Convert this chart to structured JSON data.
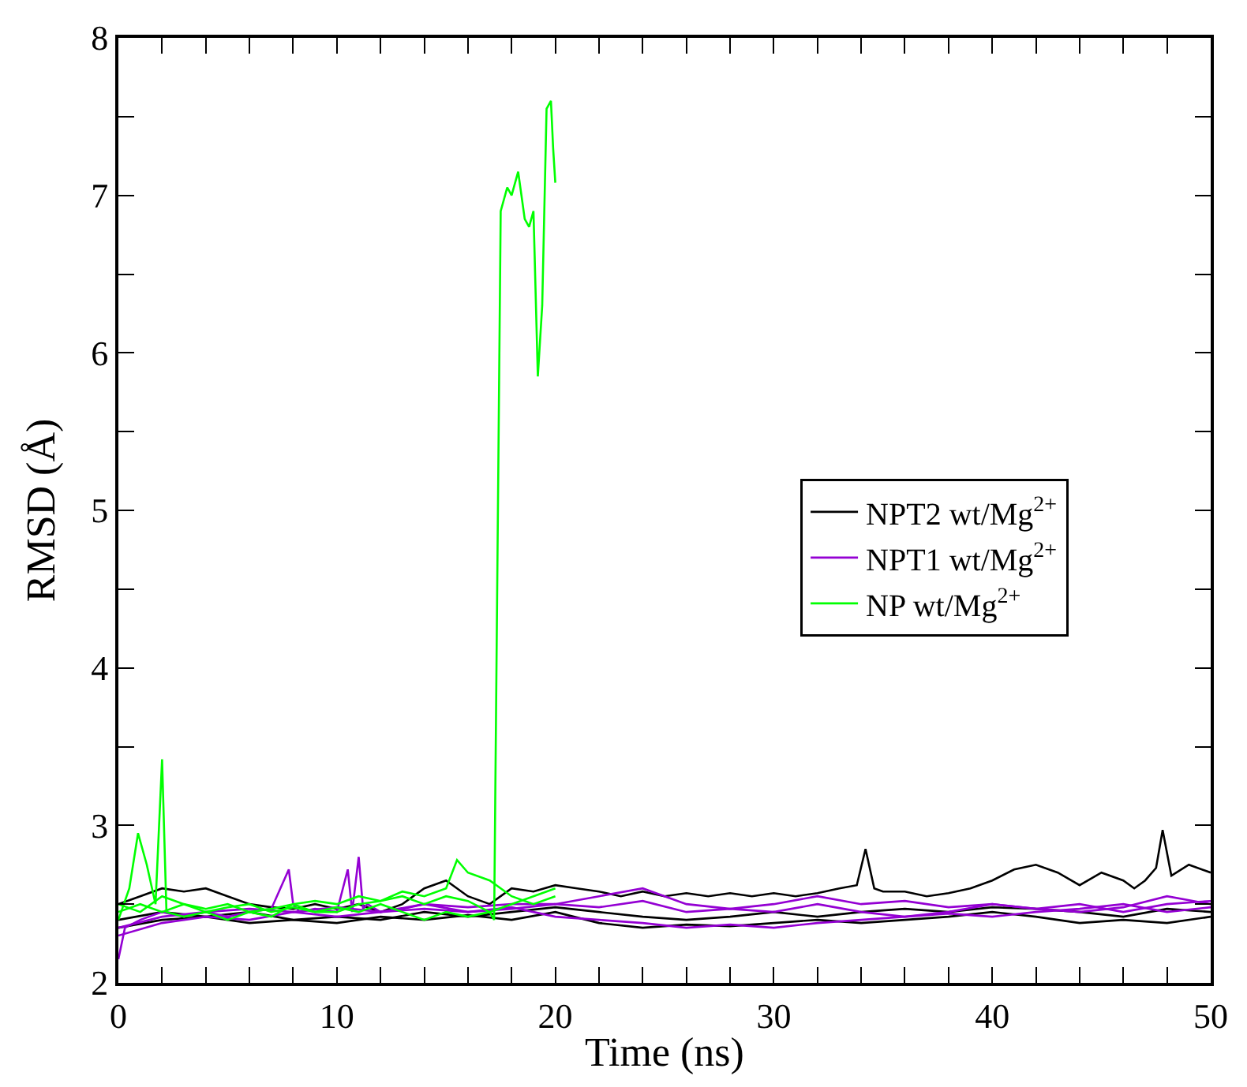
{
  "chart_data": {
    "type": "line",
    "xlabel": "Time (ns)",
    "ylabel": "RMSD (Å)",
    "xlim": [
      0,
      50
    ],
    "ylim": [
      2,
      8
    ],
    "xticks": [
      0,
      {
        "value": 2,
        "label": null
      },
      {
        "value": 4,
        "label": null
      },
      {
        "value": 6,
        "label": null
      },
      {
        "value": 8,
        "label": null
      },
      10,
      {
        "value": 12,
        "label": null
      },
      {
        "value": 14,
        "label": null
      },
      {
        "value": 16,
        "label": null
      },
      {
        "value": 18,
        "label": null
      },
      20,
      {
        "value": 22,
        "label": null
      },
      {
        "value": 24,
        "label": null
      },
      {
        "value": 26,
        "label": null
      },
      {
        "value": 28,
        "label": null
      },
      30,
      {
        "value": 32,
        "label": null
      },
      {
        "value": 34,
        "label": null
      },
      {
        "value": 36,
        "label": null
      },
      {
        "value": 38,
        "label": null
      },
      40,
      {
        "value": 42,
        "label": null
      },
      {
        "value": 44,
        "label": null
      },
      {
        "value": 46,
        "label": null
      },
      {
        "value": 48,
        "label": null
      },
      50
    ],
    "yticks": [
      2,
      {
        "value": 2.5,
        "label": null
      },
      3,
      {
        "value": 3.5,
        "label": null
      },
      4,
      {
        "value": 4.5,
        "label": null
      },
      5,
      {
        "value": 5.5,
        "label": null
      },
      6,
      {
        "value": 6.5,
        "label": null
      },
      7,
      {
        "value": 7.5,
        "label": null
      },
      8
    ],
    "legend": "right",
    "marker": "none",
    "line_style": "solid",
    "series": [
      {
        "name": "NPT2 wt/Mg$^{2+}$",
        "color": "#000000",
        "x": [
          0,
          1,
          2,
          3,
          4,
          5,
          6,
          7,
          8,
          9,
          10,
          11,
          12,
          13,
          14,
          15,
          16,
          17,
          18,
          19,
          20,
          21,
          22,
          23,
          24,
          25,
          26,
          27,
          28,
          29,
          30,
          31,
          32,
          33,
          33.8,
          34.2,
          34.6,
          35,
          36,
          37,
          38,
          39,
          40,
          41,
          42,
          43,
          44,
          45,
          46,
          46.5,
          47,
          47.5,
          47.8,
          48.2,
          49,
          50
        ],
        "values": [
          2.5,
          2.55,
          2.6,
          2.58,
          2.6,
          2.55,
          2.5,
          2.48,
          2.47,
          2.5,
          2.47,
          2.5,
          2.45,
          2.5,
          2.6,
          2.65,
          2.55,
          2.5,
          2.6,
          2.58,
          2.62,
          2.6,
          2.58,
          2.55,
          2.58,
          2.55,
          2.57,
          2.55,
          2.57,
          2.55,
          2.57,
          2.55,
          2.57,
          2.6,
          2.62,
          2.85,
          2.6,
          2.58,
          2.58,
          2.55,
          2.57,
          2.6,
          2.65,
          2.72,
          2.75,
          2.7,
          2.62,
          2.7,
          2.65,
          2.6,
          2.65,
          2.73,
          2.97,
          2.68,
          2.75,
          2.7
        ]
      },
      {
        "color": "#000000",
        "x": [
          0,
          2,
          4,
          6,
          8,
          10,
          12,
          14,
          16,
          18,
          20,
          22,
          24,
          26,
          28,
          30,
          32,
          34,
          36,
          38,
          40,
          42,
          44,
          46,
          48,
          50
        ],
        "values": [
          2.35,
          2.4,
          2.42,
          2.38,
          2.4,
          2.42,
          2.4,
          2.45,
          2.42,
          2.45,
          2.48,
          2.45,
          2.42,
          2.4,
          2.42,
          2.45,
          2.42,
          2.45,
          2.47,
          2.45,
          2.48,
          2.47,
          2.45,
          2.42,
          2.47,
          2.45
        ]
      },
      {
        "color": "#000000",
        "x": [
          0,
          2,
          4,
          6,
          8,
          10,
          12,
          14,
          16,
          18,
          20,
          22,
          24,
          26,
          28,
          30,
          32,
          34,
          36,
          38,
          40,
          42,
          44,
          46,
          48,
          50
        ],
        "values": [
          2.4,
          2.45,
          2.42,
          2.45,
          2.4,
          2.38,
          2.42,
          2.4,
          2.43,
          2.4,
          2.45,
          2.38,
          2.35,
          2.37,
          2.36,
          2.38,
          2.4,
          2.38,
          2.4,
          2.42,
          2.45,
          2.42,
          2.38,
          2.4,
          2.38,
          2.42
        ]
      },
      {
        "name": "NPT1 wt/Mg$^{2+}$",
        "color": "#9400d3",
        "x": [
          0,
          0.3,
          1,
          2,
          3,
          4,
          5,
          6,
          7,
          7.8,
          8,
          8.3,
          9,
          10,
          10.5,
          10.7,
          11,
          11.2,
          11.4,
          12,
          13,
          14,
          16,
          18,
          20,
          22,
          24,
          26,
          28,
          30,
          32,
          34,
          36,
          38,
          40,
          42,
          44,
          46,
          48,
          50
        ],
        "values": [
          2.15,
          2.35,
          2.4,
          2.45,
          2.42,
          2.45,
          2.42,
          2.45,
          2.47,
          2.72,
          2.5,
          2.45,
          2.47,
          2.45,
          2.72,
          2.45,
          2.8,
          2.47,
          2.5,
          2.45,
          2.47,
          2.5,
          2.45,
          2.47,
          2.5,
          2.55,
          2.6,
          2.5,
          2.47,
          2.5,
          2.55,
          2.5,
          2.52,
          2.48,
          2.5,
          2.47,
          2.5,
          2.45,
          2.5,
          2.52
        ]
      },
      {
        "color": "#9400d3",
        "x": [
          0,
          2,
          4,
          6,
          8,
          10,
          12,
          14,
          16,
          18,
          20,
          22,
          24,
          26,
          28,
          30,
          32,
          34,
          36,
          38,
          40,
          42,
          44,
          46,
          48,
          50
        ],
        "values": [
          2.3,
          2.38,
          2.42,
          2.4,
          2.45,
          2.42,
          2.45,
          2.47,
          2.45,
          2.48,
          2.42,
          2.4,
          2.38,
          2.35,
          2.37,
          2.35,
          2.38,
          2.4,
          2.42,
          2.44,
          2.42,
          2.45,
          2.47,
          2.5,
          2.45,
          2.48
        ]
      },
      {
        "color": "#9400d3",
        "x": [
          0,
          2,
          4,
          6,
          8,
          10,
          12,
          14,
          16,
          18,
          20,
          22,
          24,
          26,
          28,
          30,
          32,
          34,
          36,
          38,
          40,
          42,
          44,
          46,
          48,
          50
        ],
        "values": [
          2.35,
          2.42,
          2.45,
          2.47,
          2.45,
          2.48,
          2.45,
          2.5,
          2.48,
          2.5,
          2.5,
          2.48,
          2.52,
          2.45,
          2.47,
          2.45,
          2.5,
          2.45,
          2.42,
          2.45,
          2.5,
          2.47,
          2.45,
          2.48,
          2.55,
          2.5
        ]
      },
      {
        "name": "NP wt/Mg$^{2+}$",
        "color": "#00ff00",
        "x": [
          0,
          1,
          2,
          3,
          4,
          5,
          6,
          7,
          8,
          9,
          10,
          11,
          12,
          13,
          14,
          15,
          16,
          17,
          17.2,
          17.5,
          17.8,
          18,
          18.3,
          18.6,
          18.8,
          19,
          19.2,
          19.4,
          19.6,
          19.8,
          19.9,
          20
        ],
        "values": [
          2.45,
          2.5,
          2.45,
          2.5,
          2.47,
          2.5,
          2.45,
          2.47,
          2.5,
          2.52,
          2.5,
          2.55,
          2.52,
          2.55,
          2.5,
          2.55,
          2.52,
          2.45,
          2.4,
          6.9,
          7.05,
          7.0,
          7.15,
          6.85,
          6.8,
          6.9,
          5.85,
          6.3,
          7.55,
          7.6,
          7.3,
          7.08
        ]
      },
      {
        "color": "#00ff00",
        "x": [
          0,
          0.5,
          0.9,
          1.3,
          1.7,
          2,
          2.2,
          3,
          4,
          5,
          6,
          7,
          8,
          9,
          10,
          11,
          12,
          13,
          14,
          15,
          16,
          17,
          18,
          19,
          20
        ],
        "values": [
          2.4,
          2.6,
          2.95,
          2.75,
          2.5,
          3.42,
          2.45,
          2.42,
          2.45,
          2.4,
          2.45,
          2.42,
          2.5,
          2.45,
          2.48,
          2.45,
          2.5,
          2.45,
          2.4,
          2.45,
          2.42,
          2.45,
          2.5,
          2.55,
          2.6
        ]
      },
      {
        "color": "#00ff00",
        "x": [
          0,
          1,
          2,
          3,
          4,
          5,
          6,
          7,
          8,
          9,
          10,
          11,
          12,
          13,
          14,
          15,
          15.5,
          16,
          17,
          18,
          19,
          20
        ],
        "values": [
          2.5,
          2.45,
          2.55,
          2.5,
          2.45,
          2.48,
          2.5,
          2.45,
          2.48,
          2.45,
          2.45,
          2.5,
          2.52,
          2.58,
          2.55,
          2.6,
          2.78,
          2.7,
          2.65,
          2.55,
          2.5,
          2.55
        ]
      }
    ]
  }
}
